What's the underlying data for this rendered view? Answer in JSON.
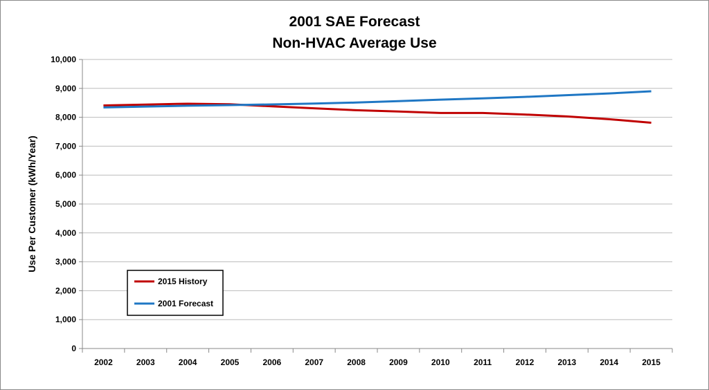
{
  "chart_data": {
    "type": "line",
    "title": [
      "2001 SAE Forecast",
      "Non-HVAC Average Use"
    ],
    "xlabel": "",
    "ylabel": "Use Per Customer (kWh/Year)",
    "categories": [
      "2002",
      "2003",
      "2004",
      "2005",
      "2006",
      "2007",
      "2008",
      "2009",
      "2010",
      "2011",
      "2012",
      "2013",
      "2014",
      "2015"
    ],
    "ylim": [
      0,
      10000
    ],
    "yticks": [
      "0",
      "1,000",
      "2,000",
      "3,000",
      "4,000",
      "5,000",
      "6,000",
      "7,000",
      "8,000",
      "9,000",
      "10,000"
    ],
    "grid": true,
    "legend_position": "bottom-left",
    "series": [
      {
        "name": "2015 History",
        "color": "#C00000",
        "values": [
          8410,
          8440,
          8470,
          8450,
          8380,
          8310,
          8245,
          8200,
          8150,
          8150,
          8095,
          8030,
          7935,
          7810
        ]
      },
      {
        "name": "2001 Forecast",
        "color": "#1F77C4",
        "values": [
          8340,
          8370,
          8400,
          8420,
          8445,
          8475,
          8510,
          8560,
          8610,
          8655,
          8705,
          8765,
          8825,
          8900
        ]
      }
    ]
  }
}
